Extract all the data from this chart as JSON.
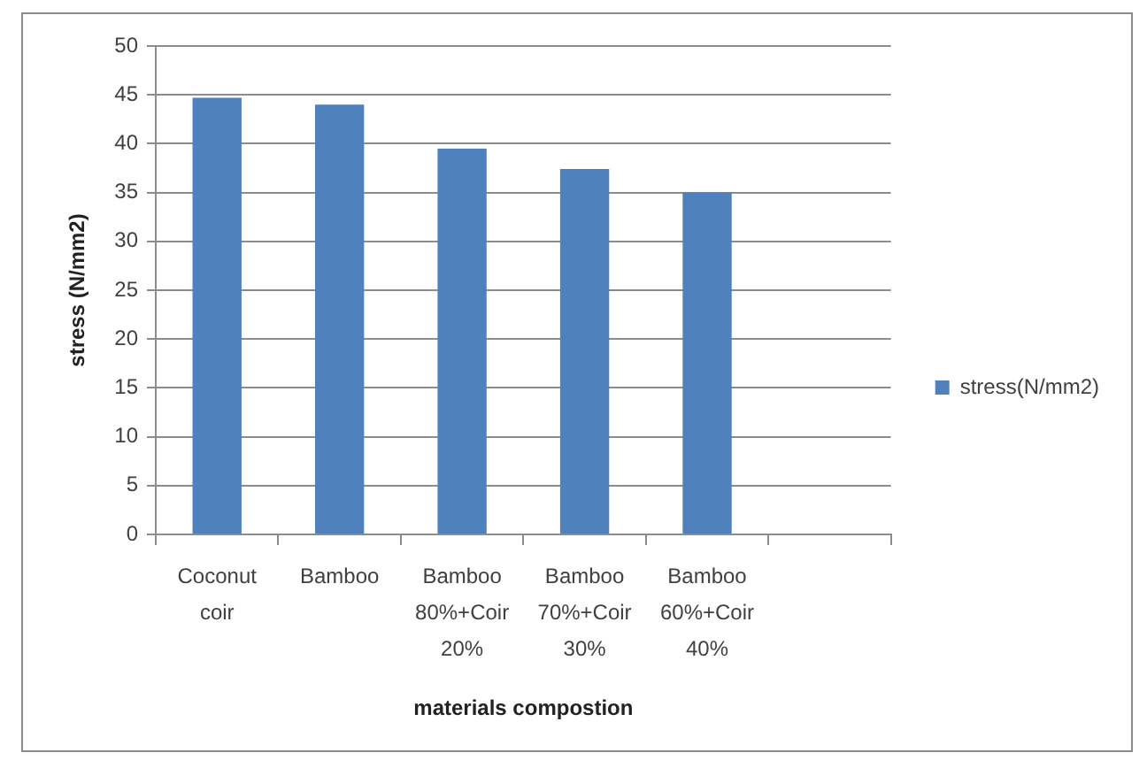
{
  "chart_data": {
    "type": "bar",
    "xlabel": "materials compostion",
    "ylabel": "stress (N/mm2)",
    "categories": [
      "Coconut coir",
      "Bamboo",
      "Bamboo 80%+Coir 20%",
      "Bamboo 70%+Coir 30%",
      "Bamboo 60%+Coir 40%",
      null
    ],
    "series": [
      {
        "name": "stress(N/mm2)",
        "color": "#4f81bd",
        "values": [
          44.7,
          44.0,
          39.5,
          37.4,
          35.0,
          null
        ]
      }
    ],
    "ylim": [
      0,
      50
    ],
    "yticks": [
      0,
      5,
      10,
      15,
      20,
      25,
      30,
      35,
      40,
      45,
      50
    ],
    "grid": "y",
    "legend": "right"
  }
}
